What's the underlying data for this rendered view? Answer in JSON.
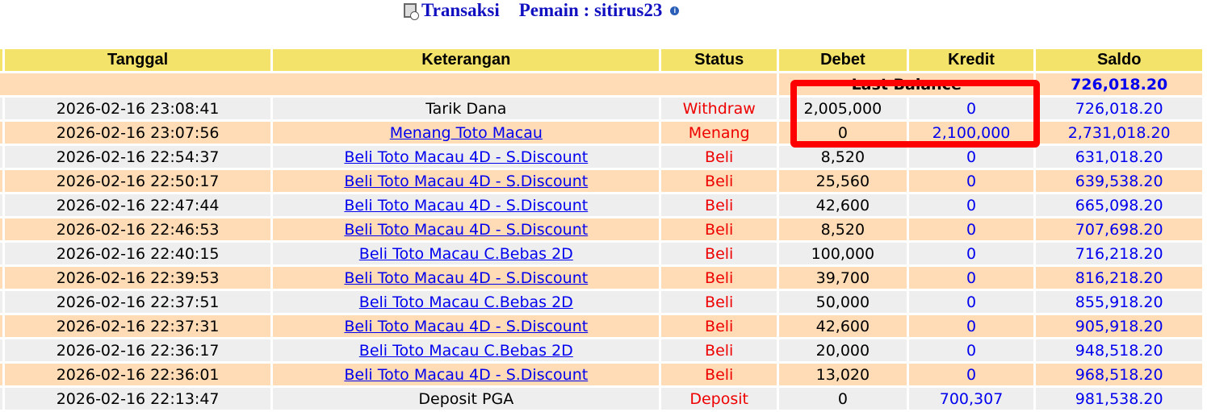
{
  "header": {
    "title": "Transaksi",
    "player_label": "Pemain : sitirus23",
    "icons": [
      "report-icon",
      "info-icon"
    ]
  },
  "table": {
    "columns": [
      "Tanggal",
      "Keterangan",
      "Status",
      "Debet",
      "Kredit",
      "Saldo"
    ],
    "last_balance": {
      "label": "Last Balance",
      "value": "726,018.20"
    },
    "rows": [
      {
        "tanggal": "2026-02-16 23:08:41",
        "keterangan": "Tarik Dana",
        "link": false,
        "status": "Withdraw",
        "debet": "2,005,000",
        "kredit": "0",
        "saldo": "726,018.20"
      },
      {
        "tanggal": "2026-02-16 23:07:56",
        "keterangan": "Menang Toto Macau",
        "link": true,
        "status": "Menang",
        "debet": "0",
        "kredit": "2,100,000",
        "saldo": "2,731,018.20"
      },
      {
        "tanggal": "2026-02-16 22:54:37",
        "keterangan": "Beli Toto Macau 4D - S.Discount",
        "link": true,
        "status": "Beli",
        "debet": "8,520",
        "kredit": "0",
        "saldo": "631,018.20"
      },
      {
        "tanggal": "2026-02-16 22:50:17",
        "keterangan": "Beli Toto Macau 4D - S.Discount",
        "link": true,
        "status": "Beli",
        "debet": "25,560",
        "kredit": "0",
        "saldo": "639,538.20"
      },
      {
        "tanggal": "2026-02-16 22:47:44",
        "keterangan": "Beli Toto Macau 4D - S.Discount",
        "link": true,
        "status": "Beli",
        "debet": "42,600",
        "kredit": "0",
        "saldo": "665,098.20"
      },
      {
        "tanggal": "2026-02-16 22:46:53",
        "keterangan": "Beli Toto Macau 4D - S.Discount",
        "link": true,
        "status": "Beli",
        "debet": "8,520",
        "kredit": "0",
        "saldo": "707,698.20"
      },
      {
        "tanggal": "2026-02-16 22:40:15",
        "keterangan": "Beli Toto Macau C.Bebas 2D",
        "link": true,
        "status": "Beli",
        "debet": "100,000",
        "kredit": "0",
        "saldo": "716,218.20"
      },
      {
        "tanggal": "2026-02-16 22:39:53",
        "keterangan": "Beli Toto Macau 4D - S.Discount",
        "link": true,
        "status": "Beli",
        "debet": "39,700",
        "kredit": "0",
        "saldo": "816,218.20"
      },
      {
        "tanggal": "2026-02-16 22:37:51",
        "keterangan": "Beli Toto Macau C.Bebas 2D",
        "link": true,
        "status": "Beli",
        "debet": "50,000",
        "kredit": "0",
        "saldo": "855,918.20"
      },
      {
        "tanggal": "2026-02-16 22:37:31",
        "keterangan": "Beli Toto Macau 4D - S.Discount",
        "link": true,
        "status": "Beli",
        "debet": "42,600",
        "kredit": "0",
        "saldo": "905,918.20"
      },
      {
        "tanggal": "2026-02-16 22:36:17",
        "keterangan": "Beli Toto Macau C.Bebas 2D",
        "link": true,
        "status": "Beli",
        "debet": "20,000",
        "kredit": "0",
        "saldo": "948,518.20"
      },
      {
        "tanggal": "2026-02-16 22:36:01",
        "keterangan": "Beli Toto Macau 4D - S.Discount",
        "link": true,
        "status": "Beli",
        "debet": "13,020",
        "kredit": "0",
        "saldo": "968,518.20"
      },
      {
        "tanggal": "2026-02-16 22:13:47",
        "keterangan": "Deposit PGA",
        "link": false,
        "status": "Deposit",
        "debet": "0",
        "kredit": "700,307",
        "saldo": "981,538.20"
      }
    ]
  },
  "colors": {
    "header_bg": "#f4e36a",
    "row_alt": "#ffdcb5",
    "row": "#eeeeee",
    "link": "#0000ee",
    "status": "#ee0000",
    "highlight_box": "#ff0000"
  }
}
